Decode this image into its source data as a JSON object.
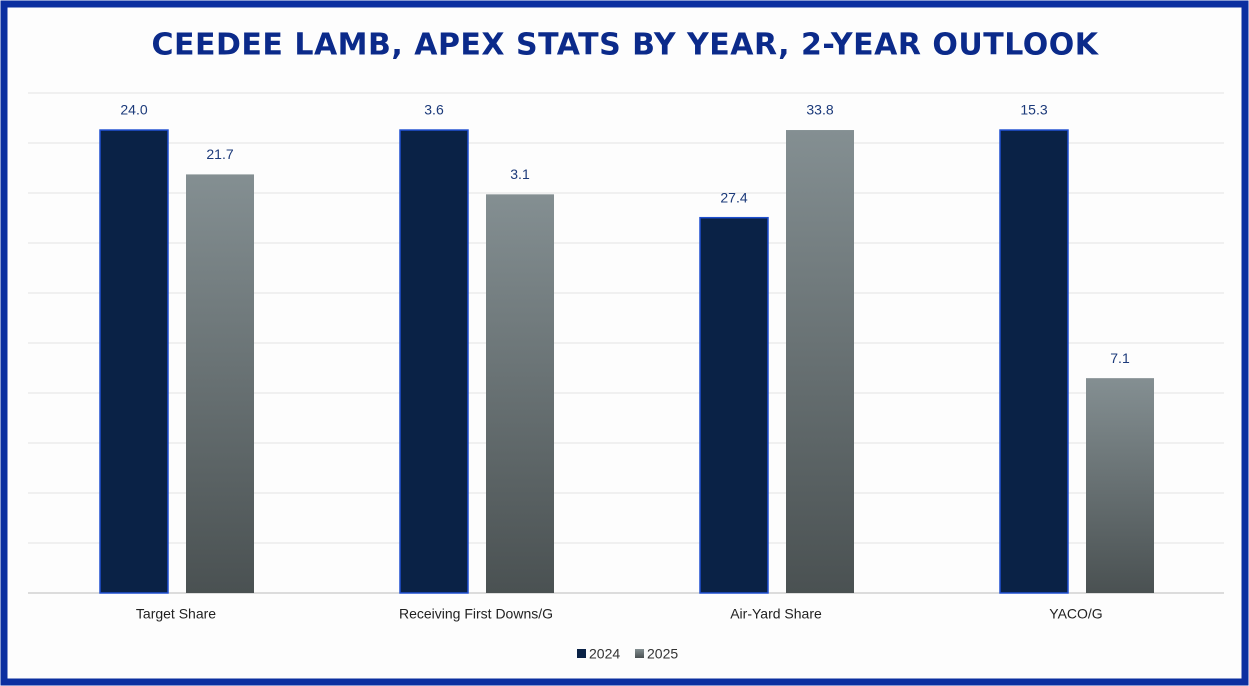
{
  "chart_data": {
    "type": "bar",
    "title": "CEEDEE LAMB, APEX STATS BY YEAR, 2-YEAR OUTLOOK",
    "categories": [
      "Target Share",
      "Receiving First Downs/G",
      "Air-Yard Share",
      "YACO/G"
    ],
    "series": [
      {
        "name": "2024",
        "color": "#0a2246",
        "values": [
          24.0,
          3.6,
          27.4,
          15.3
        ],
        "value_labels": [
          "24.0",
          "3.6",
          "27.4",
          "15.3"
        ]
      },
      {
        "name": "2025",
        "color": "#848f92",
        "values": [
          21.7,
          3.1,
          33.8,
          7.1
        ],
        "value_labels": [
          "21.7",
          "3.1",
          "33.8",
          "7.1"
        ]
      }
    ],
    "grid": true
  }
}
